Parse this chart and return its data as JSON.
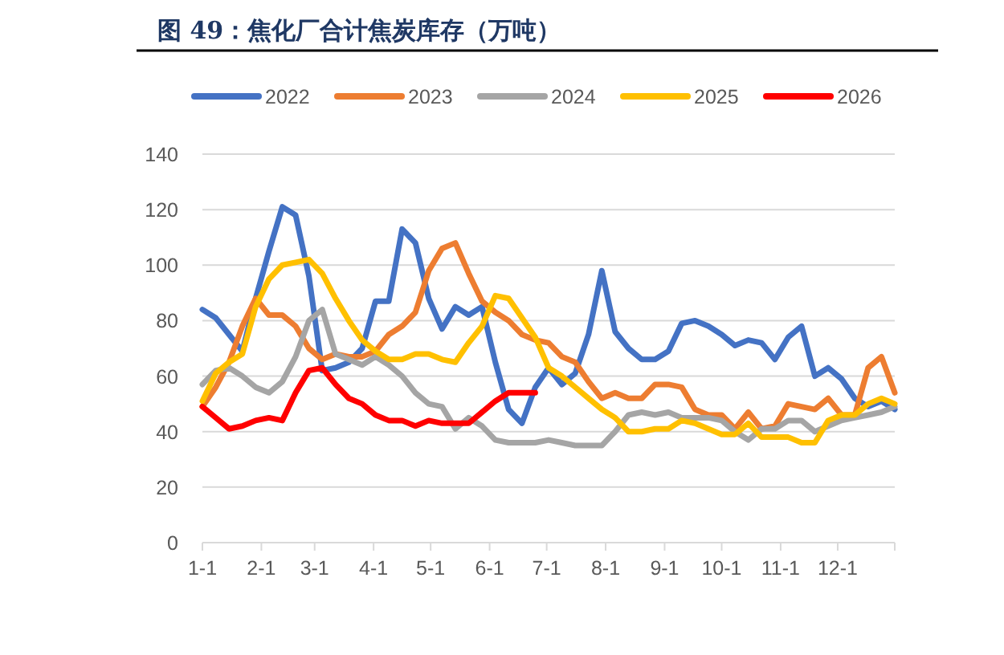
{
  "chart_data": {
    "type": "line",
    "title": "图 49：焦化厂合计焦炭库存（万吨）",
    "x": [
      "--01-01",
      "--01-08",
      "--01-15",
      "--01-22",
      "--01-29",
      "--02-05",
      "--02-12",
      "--02-19",
      "--02-26",
      "--03-05",
      "--03-12",
      "--03-19",
      "--03-26",
      "--04-02",
      "--04-09",
      "--04-16",
      "--04-23",
      "--04-30",
      "--05-07",
      "--05-14",
      "--05-21",
      "--05-28",
      "--06-04",
      "--06-11",
      "--06-18",
      "--06-25",
      "--07-02",
      "--07-09",
      "--07-16",
      "--07-23",
      "--07-30",
      "--08-06",
      "--08-13",
      "--08-20",
      "--08-27",
      "--09-03",
      "--09-10",
      "--09-17",
      "--09-24",
      "--10-01",
      "--10-08",
      "--10-15",
      "--10-22",
      "--10-29",
      "--11-05",
      "--11-12",
      "--11-19",
      "--11-26",
      "--12-03",
      "--12-10",
      "--12-17",
      "--12-24",
      "--12-31"
    ],
    "series": [
      {
        "name": "2022",
        "color": "#4472c4",
        "values": [
          84,
          81,
          75,
          69,
          88,
          105,
          121,
          118,
          96,
          62,
          63,
          65,
          70,
          87,
          87,
          113,
          108,
          88,
          77,
          85,
          82,
          85,
          65,
          48,
          43,
          56,
          63,
          57,
          61,
          75,
          98,
          76,
          70,
          66,
          66,
          69,
          79,
          80,
          78,
          75,
          71,
          73,
          72,
          66,
          74,
          78,
          60,
          63,
          59,
          52,
          49,
          51,
          48
        ]
      },
      {
        "name": "2023",
        "color": "#ed7d31",
        "values": [
          49,
          56,
          65,
          78,
          88,
          82,
          82,
          78,
          70,
          66,
          68,
          67,
          67,
          69,
          75,
          78,
          83,
          98,
          106,
          108,
          97,
          87,
          83,
          80,
          75,
          73,
          72,
          67,
          65,
          58,
          52,
          54,
          52,
          52,
          57,
          57,
          56,
          48,
          46,
          46,
          41,
          47,
          41,
          42,
          50,
          49,
          48,
          52,
          46,
          46,
          63,
          67,
          54
        ]
      },
      {
        "name": "2024",
        "color": "#a5a5a5",
        "values": [
          57,
          62,
          63,
          60,
          56,
          54,
          58,
          67,
          80,
          84,
          68,
          66,
          64,
          67,
          64,
          60,
          54,
          50,
          49,
          41,
          45,
          42,
          37,
          36,
          36,
          36,
          37,
          36,
          35,
          35,
          35,
          40,
          46,
          47,
          46,
          47,
          45,
          45,
          45,
          44,
          40,
          37,
          41,
          41,
          44,
          44,
          40,
          42,
          44,
          45,
          46,
          47,
          49
        ]
      },
      {
        "name": "2025",
        "color": "#ffc000",
        "values": [
          51,
          61,
          65,
          68,
          85,
          95,
          100,
          101,
          102,
          97,
          88,
          80,
          73,
          69,
          66,
          66,
          68,
          68,
          66,
          65,
          72,
          78,
          89,
          88,
          81,
          74,
          63,
          60,
          56,
          52,
          48,
          45,
          40,
          40,
          41,
          41,
          44,
          43,
          41,
          39,
          39,
          43,
          38,
          38,
          38,
          36,
          36,
          44,
          46,
          46,
          50,
          52,
          50
        ]
      },
      {
        "name": "2026",
        "color": "#ff0000",
        "values": [
          49,
          45,
          41,
          42,
          44,
          45,
          44,
          54,
          62,
          63,
          57,
          52,
          50,
          46,
          44,
          44,
          42,
          44,
          43,
          43,
          43,
          47,
          51,
          54,
          54,
          54,
          null,
          null,
          null,
          null,
          null,
          null,
          null,
          null,
          null,
          null,
          null,
          null,
          null,
          null,
          null,
          null,
          null,
          null,
          null,
          null,
          null,
          null,
          null,
          null,
          null,
          null,
          null
        ]
      }
    ],
    "xlim": [
      "--01-01",
      "--12-31"
    ],
    "xticks": [
      {
        "value": "--01-01",
        "label": "1-1"
      },
      {
        "value": "--02-01",
        "label": "2-1"
      },
      {
        "value": "--03-01",
        "label": "3-1"
      },
      {
        "value": "--04-01",
        "label": "4-1"
      },
      {
        "value": "--05-01",
        "label": "5-1"
      },
      {
        "value": "--06-01",
        "label": "6-1"
      },
      {
        "value": "--07-01",
        "label": "7-1"
      },
      {
        "value": "--08-01",
        "label": "8-1"
      },
      {
        "value": "--09-01",
        "label": "9-1"
      },
      {
        "value": "--10-01",
        "label": "10-1"
      },
      {
        "value": "--11-01",
        "label": "11-1"
      },
      {
        "value": "--12-01",
        "label": "12-1"
      }
    ],
    "ylim": [
      0,
      140
    ],
    "yticks": [
      0,
      20,
      40,
      60,
      80,
      100,
      120,
      140
    ],
    "grid": "y",
    "legend": "top",
    "line_style": "solid"
  }
}
